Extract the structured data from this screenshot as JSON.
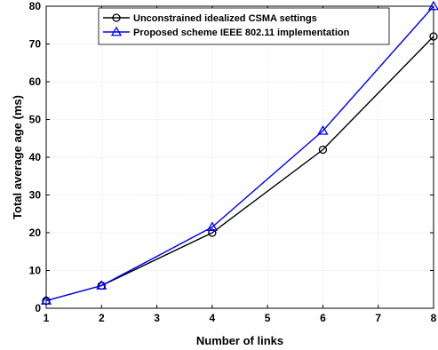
{
  "chart_data": {
    "type": "line",
    "xlabel": "Number of links",
    "ylabel": "Total average age (ms)",
    "xlim": [
      1,
      8
    ],
    "ylim": [
      0,
      80
    ],
    "xticks": [
      1,
      2,
      3,
      4,
      5,
      6,
      7,
      8
    ],
    "yticks": [
      0,
      10,
      20,
      30,
      40,
      50,
      60,
      70,
      80
    ],
    "grid": true,
    "legend_position": "top-center",
    "series": [
      {
        "name": "Unconstrained idealized CSMA settings",
        "color": "#000000",
        "marker": "circle",
        "x": [
          1,
          2,
          4,
          6,
          8
        ],
        "y": [
          2,
          6,
          20,
          42,
          72
        ]
      },
      {
        "name": "Proposed scheme IEEE 802.11 implementation",
        "color": "#0000ff",
        "marker": "triangle",
        "x": [
          1,
          2,
          4,
          6,
          8
        ],
        "y": [
          2,
          6,
          21.5,
          47,
          80
        ]
      }
    ]
  }
}
